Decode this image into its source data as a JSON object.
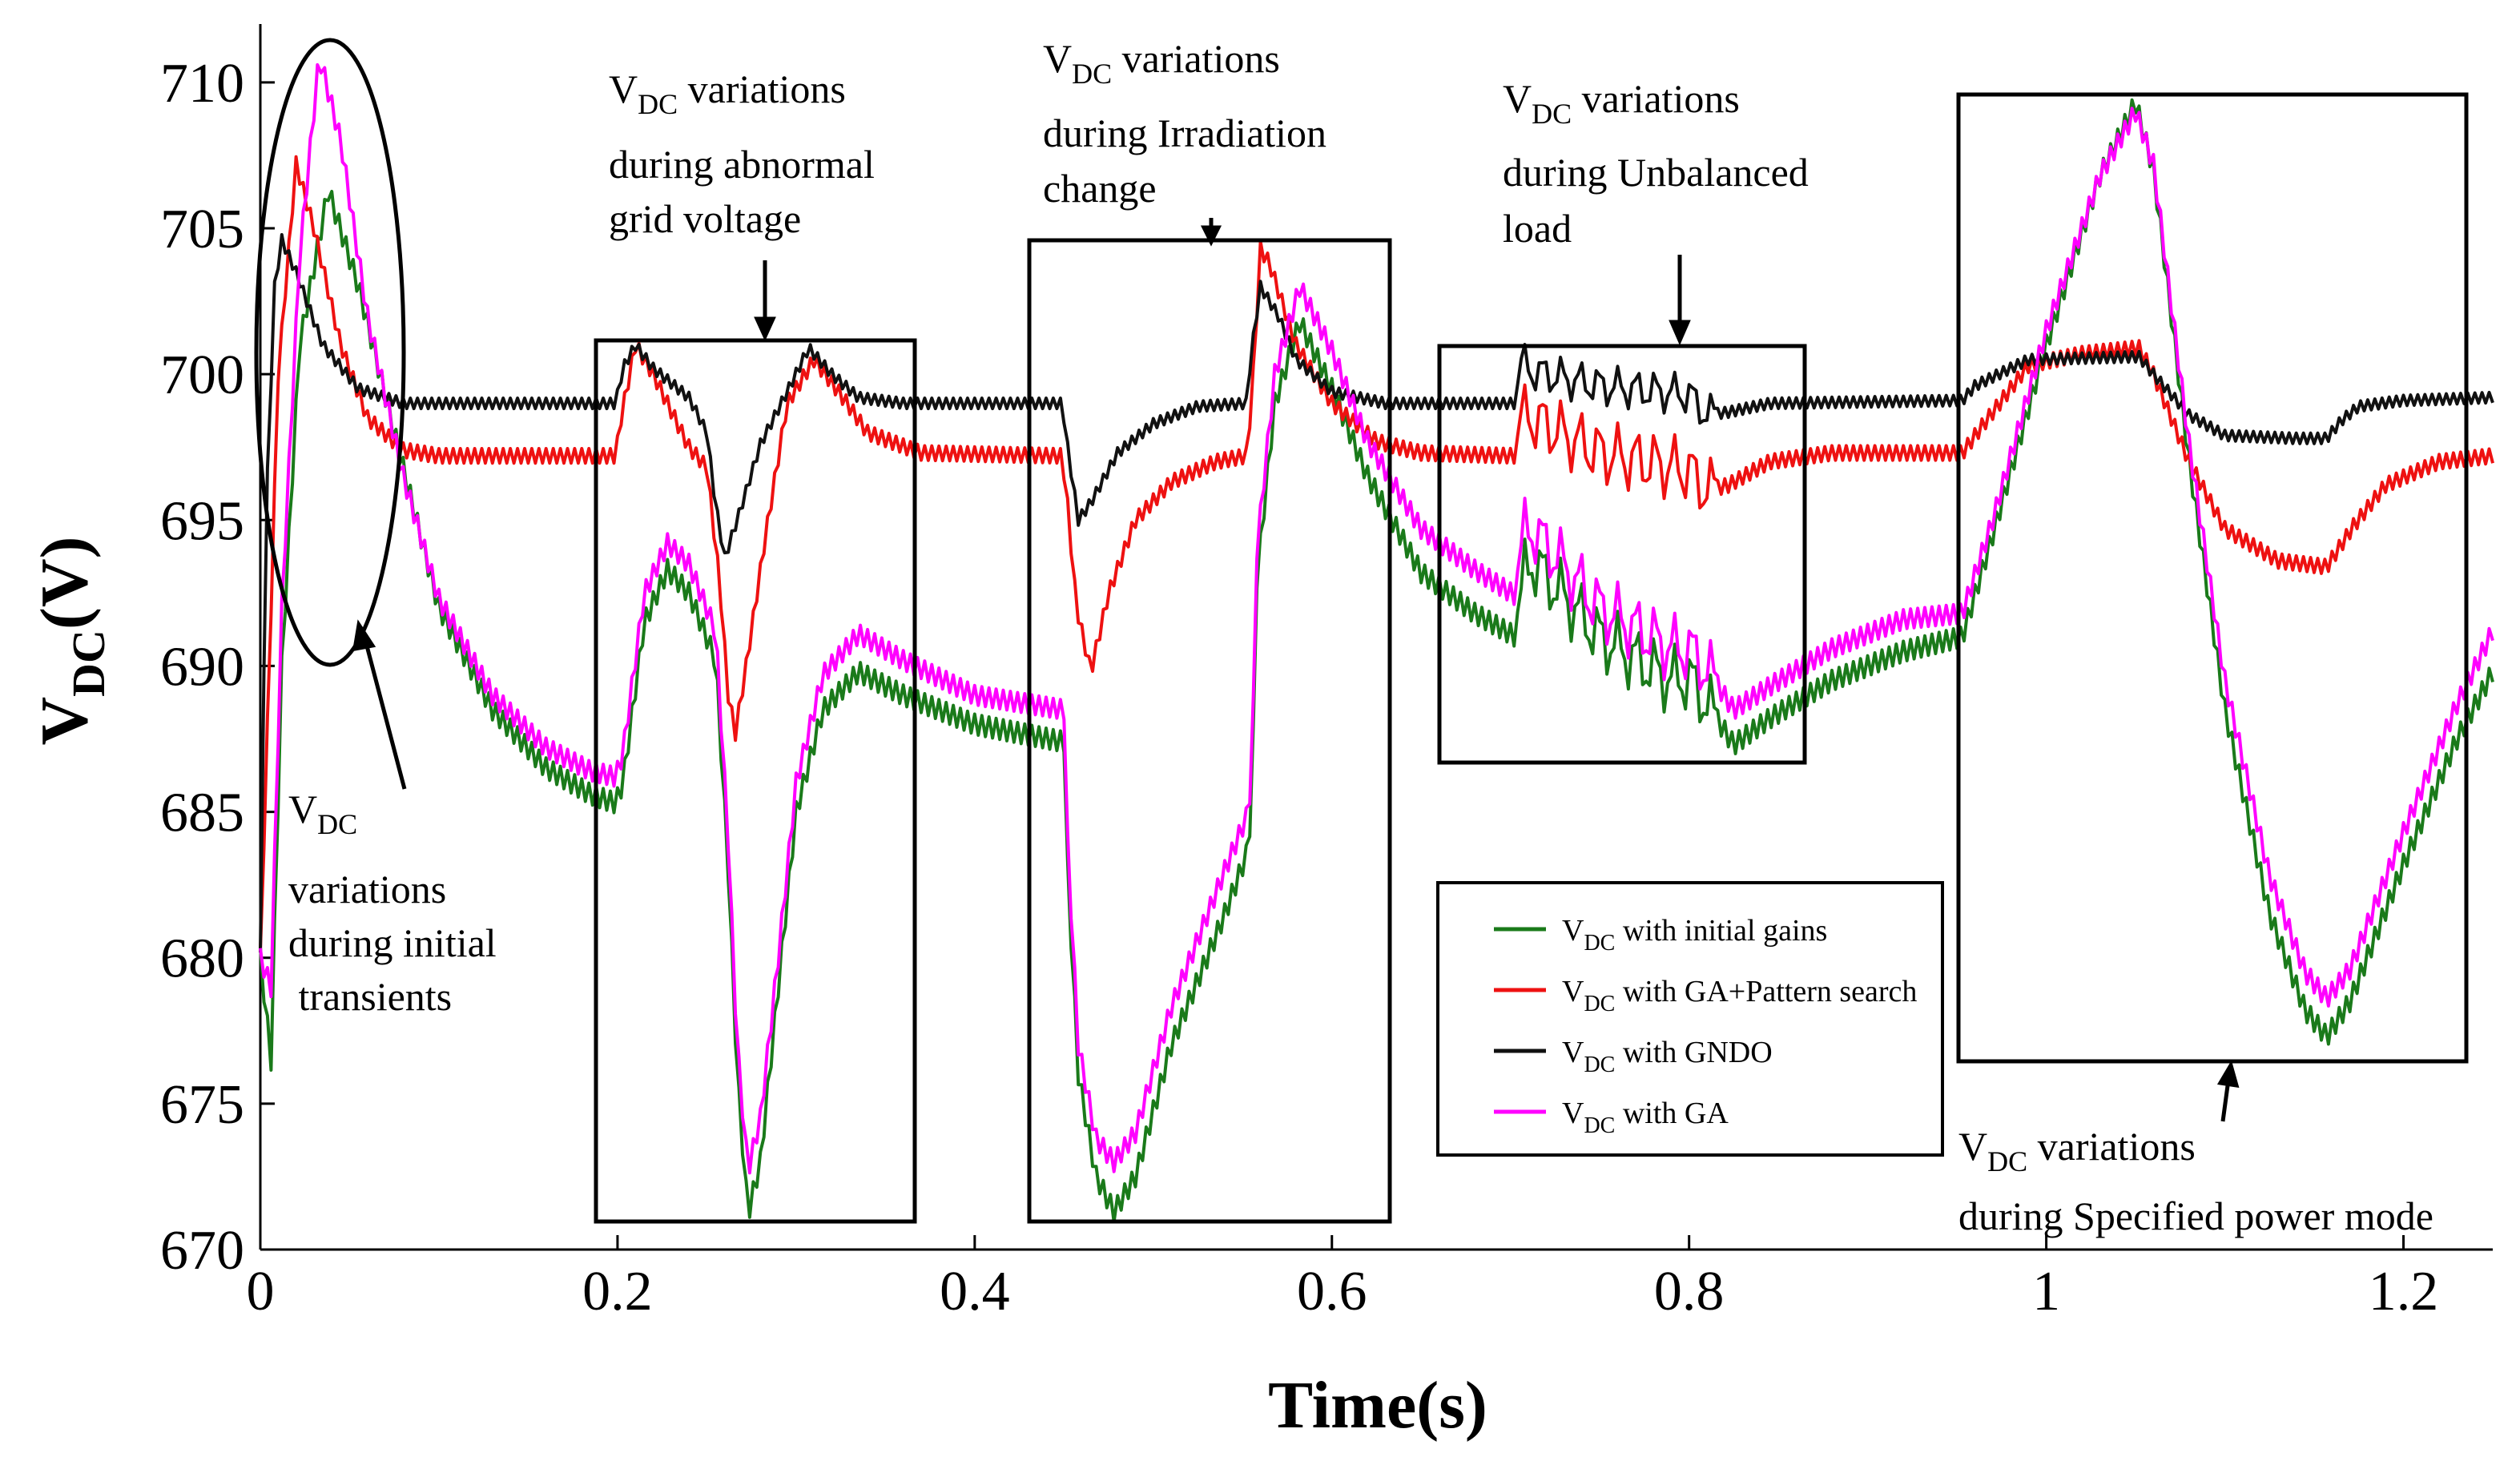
{
  "chart_data": {
    "type": "line",
    "title": "",
    "xlabel": "Time(s)",
    "ylabel_main": "V",
    "ylabel_sub": "DC",
    "ylabel_suffix": "(V)",
    "xlim": [
      0,
      1.25
    ],
    "ylim": [
      670,
      712
    ],
    "x_ticks": [
      0,
      0.2,
      0.4,
      0.6,
      0.8,
      1.0,
      1.2
    ],
    "x_tick_labels": [
      "0",
      "0.2",
      "0.4",
      "0.6",
      "0.8",
      "1",
      "1.2"
    ],
    "y_ticks": [
      670,
      675,
      680,
      685,
      690,
      695,
      700,
      705,
      710
    ],
    "y_tick_labels": [
      "670",
      "675",
      "680",
      "685",
      "690",
      "695",
      "700",
      "705",
      "710"
    ],
    "grid": false,
    "legend_position": "bottom-center-right",
    "series": [
      {
        "name": "VDC with initial gains",
        "legend_main": "V",
        "legend_sub": "DC",
        "legend_suffix": " with initial gains",
        "color": "#1a7a1a",
        "ripple": 0.35,
        "points": [
          [
            0,
            680
          ],
          [
            0.006,
            676.5
          ],
          [
            0.012,
            690
          ],
          [
            0.022,
            701
          ],
          [
            0.038,
            706.3
          ],
          [
            0.055,
            703
          ],
          [
            0.075,
            698
          ],
          [
            0.1,
            692
          ],
          [
            0.13,
            688.5
          ],
          [
            0.16,
            686.5
          ],
          [
            0.185,
            685.6
          ],
          [
            0.199,
            685.3
          ],
          [
            0.203,
            686
          ],
          [
            0.215,
            691.5
          ],
          [
            0.228,
            693.3
          ],
          [
            0.24,
            692.5
          ],
          [
            0.255,
            690.2
          ],
          [
            0.262,
            683
          ],
          [
            0.267,
            676
          ],
          [
            0.273,
            671.2
          ],
          [
            0.28,
            673
          ],
          [
            0.29,
            679
          ],
          [
            0.3,
            685
          ],
          [
            0.315,
            688.5
          ],
          [
            0.335,
            689.8
          ],
          [
            0.36,
            689
          ],
          [
            0.4,
            688
          ],
          [
            0.45,
            687.4
          ],
          [
            0.452,
            683
          ],
          [
            0.458,
            676
          ],
          [
            0.468,
            672.5
          ],
          [
            0.478,
            671.3
          ],
          [
            0.49,
            672.5
          ],
          [
            0.51,
            677
          ],
          [
            0.54,
            681.5
          ],
          [
            0.552,
            683.5
          ],
          [
            0.555,
            685
          ],
          [
            0.558,
            693
          ],
          [
            0.568,
            699
          ],
          [
            0.582,
            701.8
          ],
          [
            0.6,
            699.5
          ],
          [
            0.62,
            696.5
          ],
          [
            0.65,
            693.2
          ],
          [
            0.68,
            691.8
          ],
          [
            0.703,
            691
          ],
          [
            0.707,
            693
          ],
          [
            0.712,
            693.6
          ],
          [
            0.75,
            691
          ],
          [
            0.79,
            689.5
          ],
          [
            0.8,
            689.6
          ],
          [
            0.812,
            688.5
          ],
          [
            0.825,
            687.3
          ],
          [
            0.845,
            688.2
          ],
          [
            0.88,
            689.5
          ],
          [
            0.92,
            690.5
          ],
          [
            0.953,
            691
          ],
          [
            0.97,
            694.5
          ],
          [
            1.0,
            701
          ],
          [
            1.03,
            706.8
          ],
          [
            1.05,
            709.3
          ],
          [
            1.06,
            707
          ],
          [
            1.08,
            697
          ],
          [
            1.1,
            688.5
          ],
          [
            1.125,
            681.5
          ],
          [
            1.145,
            678.2
          ],
          [
            1.157,
            677.3
          ],
          [
            1.17,
            678.5
          ],
          [
            1.2,
            683.2
          ],
          [
            1.23,
            687.5
          ],
          [
            1.25,
            689.8
          ]
        ]
      },
      {
        "name": "VDC with GA+Pattern search",
        "legend_main": "V",
        "legend_sub": "DC",
        "legend_suffix": " with GA+Pattern search",
        "color": "#ee1111",
        "ripple": 0.25,
        "points": [
          [
            0,
            680
          ],
          [
            0.004,
            688
          ],
          [
            0.01,
            700
          ],
          [
            0.02,
            707.2
          ],
          [
            0.03,
            705
          ],
          [
            0.045,
            701
          ],
          [
            0.06,
            698.5
          ],
          [
            0.08,
            697.4
          ],
          [
            0.1,
            697.2
          ],
          [
            0.199,
            697.2
          ],
          [
            0.202,
            698.5
          ],
          [
            0.21,
            701
          ],
          [
            0.22,
            700
          ],
          [
            0.24,
            697.5
          ],
          [
            0.25,
            696.8
          ],
          [
            0.257,
            693
          ],
          [
            0.262,
            689
          ],
          [
            0.266,
            687.7
          ],
          [
            0.272,
            690
          ],
          [
            0.283,
            694.5
          ],
          [
            0.295,
            699
          ],
          [
            0.31,
            700.5
          ],
          [
            0.325,
            699.3
          ],
          [
            0.34,
            698
          ],
          [
            0.37,
            697.3
          ],
          [
            0.449,
            697.2
          ],
          [
            0.452,
            695.5
          ],
          [
            0.457,
            692
          ],
          [
            0.465,
            689.8
          ],
          [
            0.475,
            692.5
          ],
          [
            0.49,
            695
          ],
          [
            0.51,
            696.3
          ],
          [
            0.535,
            697
          ],
          [
            0.552,
            697.2
          ],
          [
            0.555,
            699
          ],
          [
            0.56,
            704.3
          ],
          [
            0.565,
            703.8
          ],
          [
            0.58,
            701
          ],
          [
            0.6,
            699
          ],
          [
            0.625,
            697.7
          ],
          [
            0.65,
            697.3
          ],
          [
            0.703,
            697.2
          ],
          [
            0.706,
            698.5
          ],
          [
            0.712,
            698.5
          ],
          [
            0.75,
            697.3
          ],
          [
            0.8,
            696.7
          ],
          [
            0.81,
            696
          ],
          [
            0.822,
            696.2
          ],
          [
            0.845,
            697
          ],
          [
            0.88,
            697.3
          ],
          [
            0.953,
            697.3
          ],
          [
            0.965,
            698.3
          ],
          [
            0.99,
            700.3
          ],
          [
            1.02,
            700.7
          ],
          [
            1.052,
            700.9
          ],
          [
            1.06,
            700
          ],
          [
            1.08,
            697
          ],
          [
            1.1,
            694.7
          ],
          [
            1.13,
            693.6
          ],
          [
            1.157,
            693.4
          ],
          [
            1.172,
            694.8
          ],
          [
            1.19,
            696.2
          ],
          [
            1.22,
            697
          ],
          [
            1.25,
            697.2
          ]
        ]
      },
      {
        "name": "VDC with GNDO",
        "legend_main": "V",
        "legend_sub": "DC",
        "legend_suffix": " with GNDO",
        "color": "#111111",
        "ripple": 0.18,
        "points": [
          [
            0,
            680
          ],
          [
            0.003,
            695
          ],
          [
            0.008,
            703
          ],
          [
            0.012,
            704.6
          ],
          [
            0.02,
            703.5
          ],
          [
            0.035,
            701
          ],
          [
            0.055,
            699.5
          ],
          [
            0.08,
            699
          ],
          [
            0.199,
            699
          ],
          [
            0.203,
            700.2
          ],
          [
            0.21,
            701
          ],
          [
            0.22,
            700.2
          ],
          [
            0.24,
            699.2
          ],
          [
            0.25,
            698
          ],
          [
            0.255,
            695.5
          ],
          [
            0.26,
            693.7
          ],
          [
            0.268,
            695.2
          ],
          [
            0.28,
            697.6
          ],
          [
            0.295,
            699.4
          ],
          [
            0.307,
            700.9
          ],
          [
            0.32,
            700
          ],
          [
            0.335,
            699.2
          ],
          [
            0.36,
            699
          ],
          [
            0.449,
            699
          ],
          [
            0.452,
            697.5
          ],
          [
            0.458,
            695
          ],
          [
            0.465,
            695.6
          ],
          [
            0.48,
            697.3
          ],
          [
            0.5,
            698.3
          ],
          [
            0.525,
            698.9
          ],
          [
            0.552,
            699
          ],
          [
            0.555,
            700.8
          ],
          [
            0.56,
            703
          ],
          [
            0.57,
            702
          ],
          [
            0.58,
            700.5
          ],
          [
            0.6,
            699.4
          ],
          [
            0.63,
            699
          ],
          [
            0.703,
            699
          ],
          [
            0.706,
            700.4
          ],
          [
            0.712,
            700.1
          ],
          [
            0.75,
            699.6
          ],
          [
            0.8,
            699.3
          ],
          [
            0.81,
            698.6
          ],
          [
            0.822,
            698.7
          ],
          [
            0.845,
            699
          ],
          [
            0.953,
            699.1
          ],
          [
            0.96,
            699.6
          ],
          [
            0.99,
            700.5
          ],
          [
            1.052,
            700.6
          ],
          [
            1.06,
            700
          ],
          [
            1.08,
            698.6
          ],
          [
            1.1,
            697.9
          ],
          [
            1.14,
            697.8
          ],
          [
            1.157,
            697.8
          ],
          [
            1.165,
            698.4
          ],
          [
            1.175,
            698.9
          ],
          [
            1.2,
            699.1
          ],
          [
            1.25,
            699.2
          ]
        ]
      },
      {
        "name": "VDC with GA",
        "legend_main": "V",
        "legend_sub": "DC",
        "legend_suffix": " with GA",
        "color": "#ff00ff",
        "ripple": 0.33,
        "points": [
          [
            0,
            680
          ],
          [
            0.006,
            679
          ],
          [
            0.012,
            692
          ],
          [
            0.022,
            704
          ],
          [
            0.033,
            710.9
          ],
          [
            0.045,
            708
          ],
          [
            0.06,
            702
          ],
          [
            0.08,
            696.5
          ],
          [
            0.1,
            692.3
          ],
          [
            0.13,
            689
          ],
          [
            0.16,
            687.2
          ],
          [
            0.185,
            686.4
          ],
          [
            0.199,
            686.2
          ],
          [
            0.203,
            687
          ],
          [
            0.215,
            692.5
          ],
          [
            0.228,
            694.2
          ],
          [
            0.24,
            693.5
          ],
          [
            0.255,
            691.2
          ],
          [
            0.262,
            684
          ],
          [
            0.267,
            677
          ],
          [
            0.273,
            672.7
          ],
          [
            0.28,
            674.5
          ],
          [
            0.29,
            680
          ],
          [
            0.3,
            686
          ],
          [
            0.315,
            689.7
          ],
          [
            0.335,
            691.1
          ],
          [
            0.36,
            690.2
          ],
          [
            0.4,
            689
          ],
          [
            0.45,
            688.5
          ],
          [
            0.452,
            684
          ],
          [
            0.458,
            677
          ],
          [
            0.468,
            673.8
          ],
          [
            0.478,
            673
          ],
          [
            0.49,
            674
          ],
          [
            0.51,
            678.3
          ],
          [
            0.54,
            683
          ],
          [
            0.552,
            684.8
          ],
          [
            0.555,
            686
          ],
          [
            0.558,
            694
          ],
          [
            0.568,
            700
          ],
          [
            0.582,
            703
          ],
          [
            0.6,
            700.8
          ],
          [
            0.62,
            697.7
          ],
          [
            0.65,
            694.7
          ],
          [
            0.68,
            693.3
          ],
          [
            0.703,
            692.4
          ],
          [
            0.707,
            694.5
          ],
          [
            0.712,
            694.7
          ],
          [
            0.75,
            692
          ],
          [
            0.79,
            690.6
          ],
          [
            0.8,
            690.6
          ],
          [
            0.812,
            689.7
          ],
          [
            0.825,
            688.5
          ],
          [
            0.845,
            689.3
          ],
          [
            0.88,
            690.6
          ],
          [
            0.92,
            691.6
          ],
          [
            0.953,
            691.8
          ],
          [
            0.97,
            695
          ],
          [
            1.0,
            701.5
          ],
          [
            1.03,
            706.8
          ],
          [
            1.05,
            709
          ],
          [
            1.06,
            707.2
          ],
          [
            1.08,
            697.6
          ],
          [
            1.1,
            689.5
          ],
          [
            1.125,
            682.8
          ],
          [
            1.145,
            679.5
          ],
          [
            1.157,
            678.6
          ],
          [
            1.17,
            679.6
          ],
          [
            1.2,
            684.3
          ],
          [
            1.23,
            688.7
          ],
          [
            1.25,
            691.2
          ]
        ]
      }
    ],
    "annotations": [
      {
        "lines": [
          {
            "main": "V",
            "sub": "DC",
            "rest": ""
          },
          {
            "main": "variations",
            "sub": "",
            "rest": ""
          },
          {
            "main": "during initial",
            "sub": "",
            "rest": ""
          },
          {
            "main": " transients",
            "sub": "",
            "rest": ""
          }
        ]
      },
      {
        "lines": [
          {
            "main": "V",
            "sub": "DC",
            "rest": " variations"
          },
          {
            "main": "during abnormal",
            "sub": "",
            "rest": ""
          },
          {
            "main": "grid voltage",
            "sub": "",
            "rest": ""
          }
        ]
      },
      {
        "lines": [
          {
            "main": "V",
            "sub": "DC",
            "rest": " variations"
          },
          {
            "main": "during Irradiation",
            "sub": "",
            "rest": ""
          },
          {
            "main": "change",
            "sub": "",
            "rest": ""
          }
        ]
      },
      {
        "lines": [
          {
            "main": "V",
            "sub": "DC",
            "rest": " variations"
          },
          {
            "main": "during Unbalanced",
            "sub": "",
            "rest": ""
          },
          {
            "main": "load",
            "sub": "",
            "rest": ""
          }
        ]
      },
      {
        "lines": [
          {
            "main": "V",
            "sub": "DC",
            "rest": " variations"
          },
          {
            "main": "during Specified power mode",
            "sub": "",
            "rest": ""
          }
        ]
      }
    ]
  }
}
